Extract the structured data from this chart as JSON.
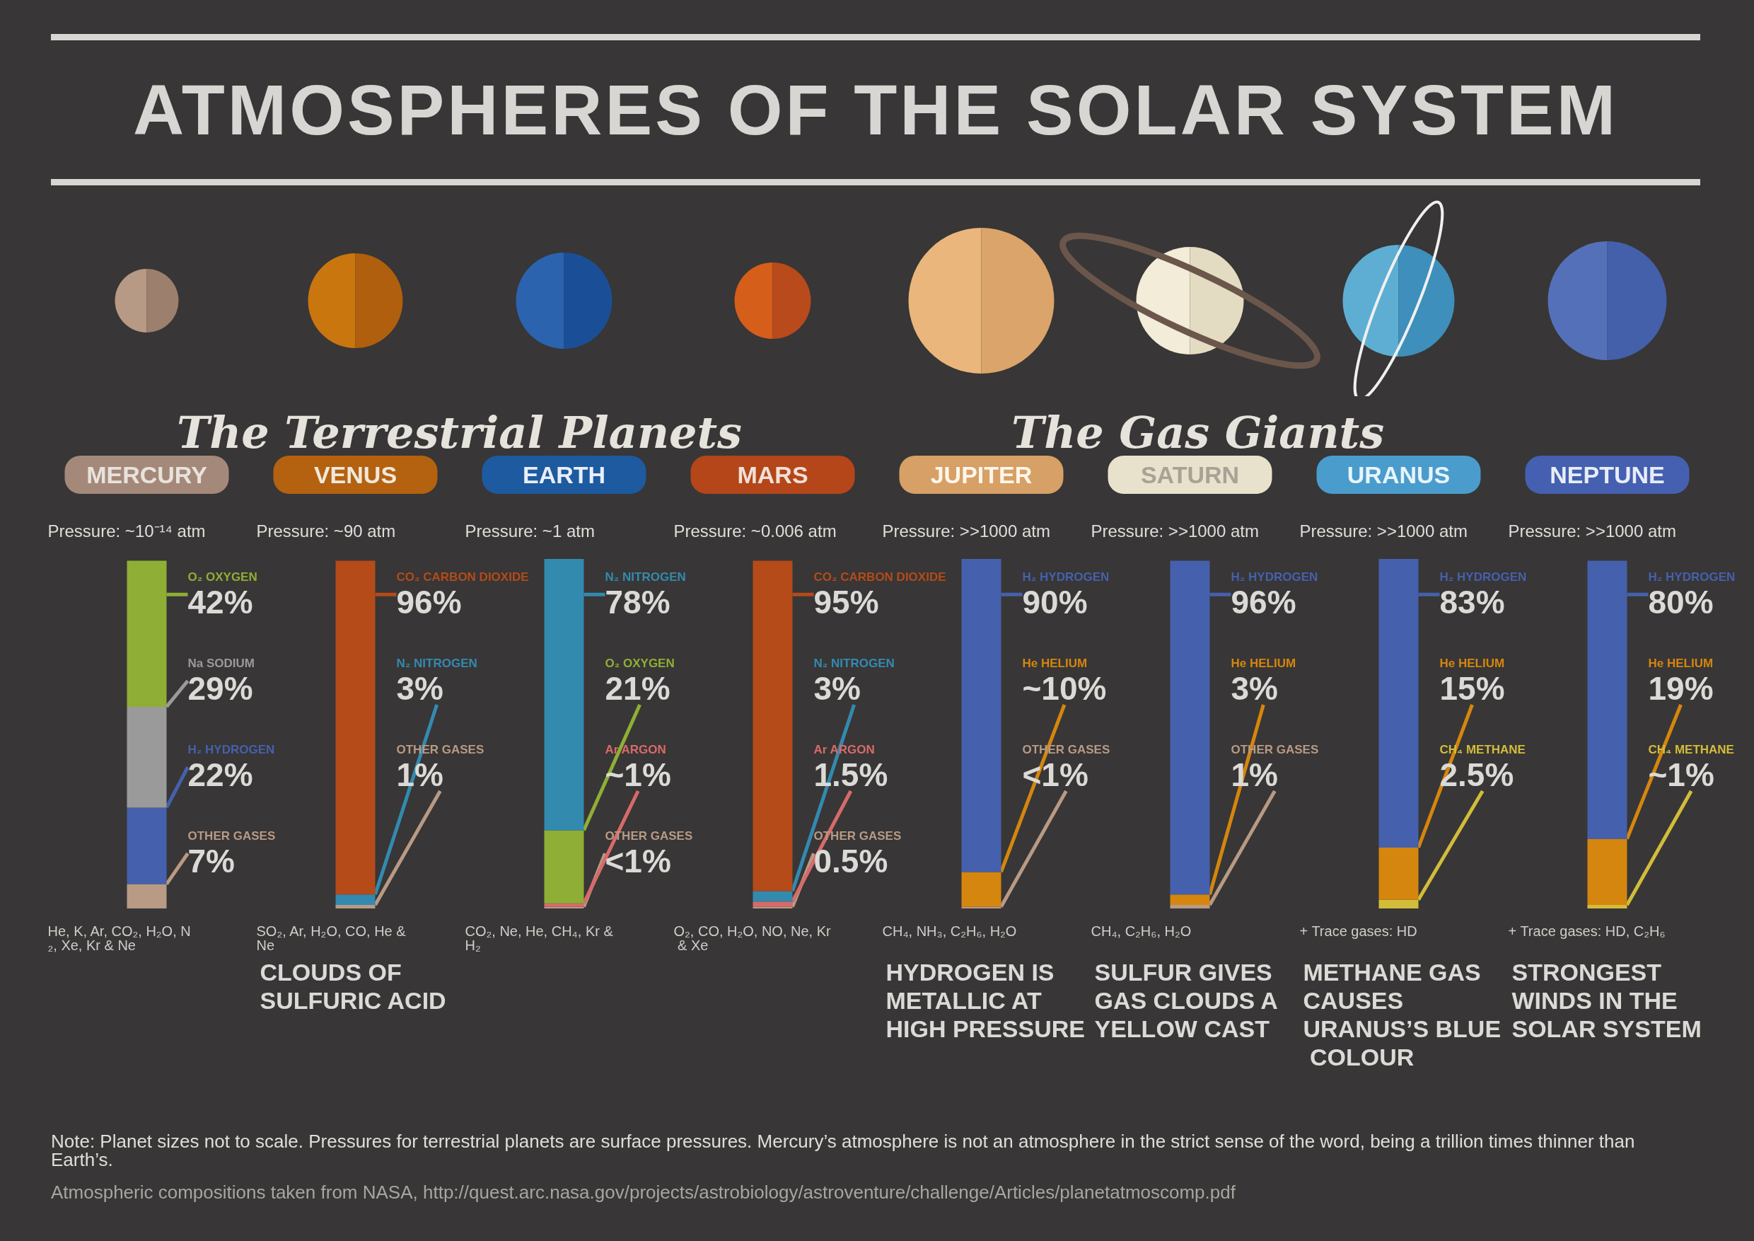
{
  "chart_data": {
    "type": "bar",
    "stacked": true,
    "title": "ATMOSPHERES OF THE SOLAR SYSTEM",
    "categories": [
      "MERCURY",
      "VENUS",
      "EARTH",
      "MARS",
      "JUPITER",
      "SATURN",
      "URANUS",
      "NEPTUNE"
    ],
    "series": [
      {
        "name": "OTHER GASES",
        "color": "#b89a85",
        "values": [
          7,
          1,
          0.5,
          0.5,
          0.5,
          1,
          null,
          null
        ],
        "value_labels": [
          "7%",
          "1%",
          "<1%",
          "0.5%",
          "<1%",
          "1%",
          null,
          null
        ]
      },
      {
        "name": "Ar ARGON",
        "color": "#d76a6a",
        "values": [
          null,
          null,
          1,
          1.5,
          null,
          null,
          null,
          null
        ],
        "value_labels": [
          null,
          null,
          "~1%",
          "1.5%",
          null,
          null,
          null,
          null
        ]
      },
      {
        "name": "CH₄ METHANE",
        "color": "#d2bd3b",
        "values": [
          null,
          null,
          null,
          null,
          null,
          null,
          2.5,
          1
        ],
        "value_labels": [
          null,
          null,
          null,
          null,
          null,
          null,
          "2.5%",
          "~1%"
        ]
      },
      {
        "name": "He HELIUM",
        "color": "#d5860e",
        "values": [
          null,
          null,
          null,
          null,
          10,
          3,
          15,
          19
        ],
        "value_labels": [
          null,
          null,
          null,
          null,
          "~10%",
          "3%",
          "15%",
          "19%"
        ]
      },
      {
        "name": "H₂ HYDROGEN",
        "color": "#4561ad",
        "values": [
          22,
          null,
          null,
          null,
          90,
          96,
          83,
          80
        ],
        "value_labels": [
          "22%",
          null,
          null,
          null,
          "90%",
          "96%",
          "83%",
          "80%"
        ]
      },
      {
        "name": "Na SODIUM",
        "color": "#9a9a9a",
        "values": [
          29,
          null,
          null,
          null,
          null,
          null,
          null,
          null
        ],
        "value_labels": [
          "29%",
          null,
          null,
          null,
          null,
          null,
          null,
          null
        ]
      },
      {
        "name": "O₂ OXYGEN",
        "color": "#8fae35",
        "values": [
          42,
          null,
          21,
          null,
          null,
          null,
          null,
          null
        ],
        "value_labels": [
          "42%",
          null,
          "21%",
          null,
          null,
          null,
          null,
          null
        ]
      },
      {
        "name": "N₂ NITROGEN",
        "color": "#338aaf",
        "values": [
          null,
          3,
          78,
          3,
          null,
          null,
          null,
          null
        ],
        "value_labels": [
          null,
          "3%",
          "78%",
          "3%",
          null,
          null,
          null,
          null
        ]
      },
      {
        "name": "CO₂ CARBON DIOXIDE",
        "color": "#b44b19",
        "values": [
          null,
          96,
          null,
          95,
          null,
          null,
          null,
          null
        ],
        "value_labels": [
          null,
          "96%",
          null,
          "95%",
          null,
          null,
          null,
          null
        ]
      }
    ],
    "annotations": [
      "The Terrestrial Planets",
      "The Gas Giants",
      "Pressure: ~10⁻¹⁴ atm",
      "Pressure: ~90 atm",
      "Pressure: ~1 atm",
      "Pressure: ~0.006 atm",
      "Pressure: >>1000 atm",
      "Pressure: >>1000 atm",
      "Pressure: >>1000 atm",
      "Pressure: >>1000 atm",
      "He, K, Ar, CO₂, H₂O, N₂, Xe, Kr & Ne",
      "SO₂, Ar, H₂O, CO, He & Ne\nCLOUDS OF SULFURIC ACID",
      "CO₂, Ne, He, CH₄, Kr & H₂",
      "O₂, CO, H₂O, NO, Ne, Kr & Xe",
      "CH₄, NH₃, C₂H₆, H₂O\nHYDROGEN IS METALLIC AT HIGH PRESSURE",
      "CH₄, C₂H₆, H₂O\nSULFUR GIVES GAS CLOUDS A YELLOW CAST",
      "+ Trace gases: HD\nMETHANE GAS CAUSES URANUS’S BLUE COLOUR",
      "+ Trace gases: HD, C₂H₆\nSTRONGEST WINDS IN THE SOLAR SYSTEM",
      "Note: Planet sizes not to scale. Pressures for terrestrial planets are surface pressures. Mercury’s atmosphere is not an atmosphere in the strict sense of the word, being a trillion times thinner than Earth’s.",
      "Atmospheric compositions taken from NASA, http://quest.arc.nasa.gov/projects/astrobiology/astroventure/challenge/Articles/planetatmoscomp.pdf"
    ]
  }
}
